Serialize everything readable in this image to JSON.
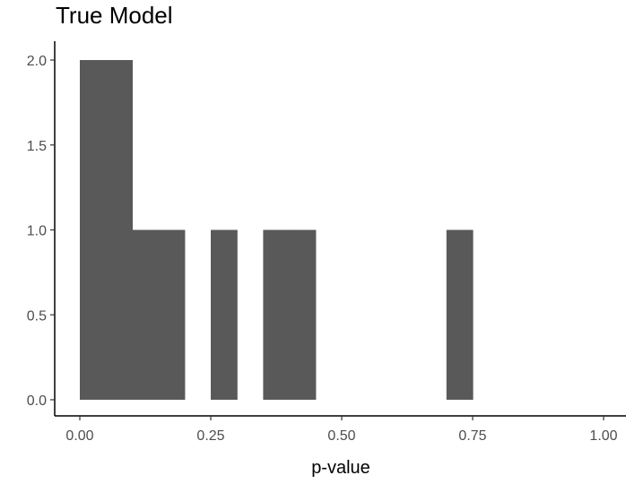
{
  "chart_data": {
    "type": "bar",
    "title": "True Model",
    "xlabel": "p-value",
    "ylabel": "",
    "xlim": [
      0.0,
      1.0
    ],
    "ylim": [
      0.0,
      2.0
    ],
    "x_ticks": [
      "0.00",
      "0.25",
      "0.50",
      "0.75",
      "1.00"
    ],
    "y_ticks": [
      "0.0",
      "0.5",
      "1.0",
      "1.5",
      "2.0"
    ],
    "bin_width": 0.05,
    "bins": [
      {
        "x0": 0.0,
        "x1": 0.05,
        "count": 2
      },
      {
        "x0": 0.05,
        "x1": 0.1,
        "count": 2
      },
      {
        "x0": 0.1,
        "x1": 0.15,
        "count": 1
      },
      {
        "x0": 0.15,
        "x1": 0.2,
        "count": 1
      },
      {
        "x0": 0.25,
        "x1": 0.3,
        "count": 1
      },
      {
        "x0": 0.35,
        "x1": 0.4,
        "count": 1
      },
      {
        "x0": 0.4,
        "x1": 0.45,
        "count": 1
      },
      {
        "x0": 0.7,
        "x1": 0.75,
        "count": 1
      }
    ],
    "bar_color": "#595959",
    "grid": false,
    "legend": "none"
  }
}
